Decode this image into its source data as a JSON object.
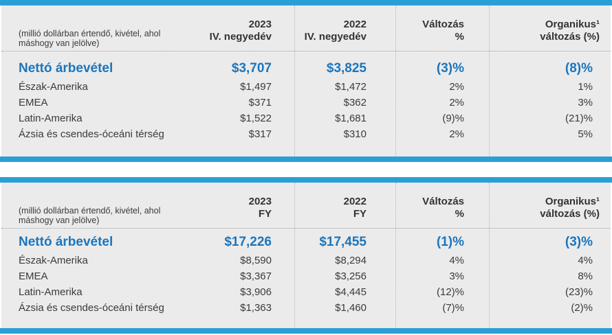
{
  "colors": {
    "accent_bar": "#2A9FD6",
    "emphasis_text": "#1B75BC",
    "panel_background": "#EBEBEB",
    "body_text": "#3A3A3A"
  },
  "tables": [
    {
      "note": "(millió dollárban értendő, kivétel, ahol máshogy van jelölve)",
      "columns": [
        "2023\nIV. negyedév",
        "2022\nIV. negyedév",
        "Változás\n%",
        "Organikus¹\nváltozás (%)"
      ],
      "rows": [
        {
          "label": "Nettó árbevétel",
          "values": [
            "$3,707",
            "$3,825",
            "(3)%",
            "(8)%"
          ]
        },
        {
          "label": "Észak-Amerika",
          "values": [
            "$1,497",
            "$1,472",
            "2%",
            "1%"
          ]
        },
        {
          "label": "EMEA",
          "values": [
            "$371",
            "$362",
            "2%",
            "3%"
          ]
        },
        {
          "label": "Latin-Amerika",
          "values": [
            "$1,522",
            "$1,681",
            "(9)%",
            "(21)%"
          ]
        },
        {
          "label": "Ázsia és csendes-óceáni térség",
          "values": [
            "$317",
            "$310",
            "2%",
            "5%"
          ]
        }
      ]
    },
    {
      "note": "(millió dollárban értendő, kivétel, ahol máshogy van jelölve)",
      "columns": [
        "2023\nFY",
        "2022\nFY",
        "Változás\n%",
        "Organikus¹\nváltozás (%)"
      ],
      "rows": [
        {
          "label": "Nettó árbevétel",
          "values": [
            "$17,226",
            "$17,455",
            "(1)%",
            "(3)%"
          ]
        },
        {
          "label": "Észak-Amerika",
          "values": [
            "$8,590",
            "$8,294",
            "4%",
            "4%"
          ]
        },
        {
          "label": "EMEA",
          "values": [
            "$3,367",
            "$3,256",
            "3%",
            "8%"
          ]
        },
        {
          "label": "Latin-Amerika",
          "values": [
            "$3,906",
            "$4,445",
            "(12)%",
            "(23)%"
          ]
        },
        {
          "label": "Ázsia és csendes-óceáni térség",
          "values": [
            "$1,363",
            "$1,460",
            "(7)%",
            "(2)%"
          ]
        }
      ]
    }
  ]
}
